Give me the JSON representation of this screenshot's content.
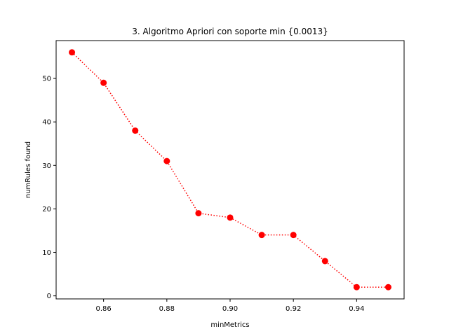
{
  "chart_data": {
    "type": "line",
    "title": "3. Algoritmo Apriori con soporte min {0.0013}",
    "xlabel": "minMetrics",
    "ylabel": "numRules found",
    "x": [
      0.85,
      0.86,
      0.87,
      0.88,
      0.89,
      0.9,
      0.91,
      0.92,
      0.93,
      0.94,
      0.95
    ],
    "series": [
      {
        "name": "numRules",
        "values": [
          56,
          49,
          38,
          31,
          19,
          18,
          14,
          14,
          8,
          2,
          2
        ],
        "color": "#ff0000",
        "line_style": "dotted",
        "marker": "circle"
      }
    ],
    "xlim": [
      0.845,
      0.955
    ],
    "ylim": [
      -0.7,
      58.7
    ],
    "xticks": [
      0.86,
      0.88,
      0.9,
      0.92,
      0.94
    ],
    "xtick_labels": [
      "0.86",
      "0.88",
      "0.90",
      "0.92",
      "0.94"
    ],
    "yticks": [
      0,
      10,
      20,
      30,
      40,
      50
    ],
    "ytick_labels": [
      "0",
      "10",
      "20",
      "30",
      "40",
      "50"
    ],
    "grid": false,
    "legend": false
  }
}
